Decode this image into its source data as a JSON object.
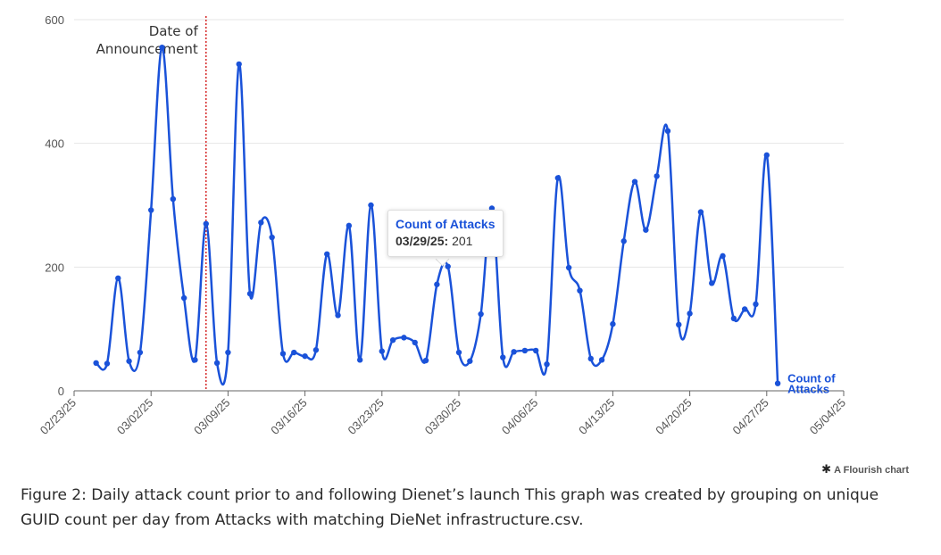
{
  "chart_data": {
    "type": "line",
    "x_ticks": [
      "02/23/25",
      "03/02/25",
      "03/09/25",
      "03/16/25",
      "03/23/25",
      "03/30/25",
      "04/06/25",
      "04/13/25",
      "04/20/25",
      "04/27/25",
      "05/04/25"
    ],
    "y_ticks": [
      0,
      200,
      400,
      600
    ],
    "ylim": [
      0,
      600
    ],
    "x_range": [
      "2025-02-23",
      "2025-05-04"
    ],
    "grid": true,
    "color": "#1a52d9",
    "series": [
      {
        "name": "Count of Attacks",
        "x": [
          "2025-02-25",
          "2025-02-26",
          "2025-02-27",
          "2025-02-28",
          "2025-03-01",
          "2025-03-02",
          "2025-03-03",
          "2025-03-04",
          "2025-03-05",
          "2025-03-06",
          "2025-03-07",
          "2025-03-08",
          "2025-03-09",
          "2025-03-10",
          "2025-03-11",
          "2025-03-12",
          "2025-03-13",
          "2025-03-14",
          "2025-03-15",
          "2025-03-16",
          "2025-03-17",
          "2025-03-18",
          "2025-03-19",
          "2025-03-20",
          "2025-03-21",
          "2025-03-22",
          "2025-03-23",
          "2025-03-24",
          "2025-03-25",
          "2025-03-26",
          "2025-03-27",
          "2025-03-28",
          "2025-03-29",
          "2025-03-30",
          "2025-03-31",
          "2025-04-01",
          "2025-04-02",
          "2025-04-03",
          "2025-04-04",
          "2025-04-05",
          "2025-04-06",
          "2025-04-07",
          "2025-04-08",
          "2025-04-09",
          "2025-04-10",
          "2025-04-11",
          "2025-04-12",
          "2025-04-13",
          "2025-04-14",
          "2025-04-15",
          "2025-04-16",
          "2025-04-17",
          "2025-04-18",
          "2025-04-19",
          "2025-04-20",
          "2025-04-21",
          "2025-04-22",
          "2025-04-23",
          "2025-04-24",
          "2025-04-25",
          "2025-04-26",
          "2025-04-27",
          "2025-04-28"
        ],
        "values": [
          45,
          44,
          182,
          48,
          62,
          292,
          555,
          310,
          150,
          50,
          270,
          45,
          62,
          528,
          157,
          272,
          248,
          60,
          62,
          56,
          66,
          221,
          122,
          267,
          50,
          300,
          64,
          82,
          86,
          78,
          49,
          172,
          201,
          62,
          48,
          124,
          295,
          54,
          63,
          65,
          65,
          43,
          344,
          199,
          162,
          52,
          50,
          108,
          242,
          338,
          260,
          347,
          420,
          107,
          125,
          289,
          174,
          218,
          117,
          132,
          140,
          381,
          12
        ]
      }
    ],
    "annotation": {
      "x": "2025-03-07",
      "label": "Date of Announcement",
      "line_1": "Date of",
      "line_2": "Announcement"
    },
    "end_label": {
      "line_1": "Count of",
      "line_2": "Attacks"
    },
    "tooltip": {
      "title": "Count of Attacks",
      "date": "03/29/25:",
      "value": "201"
    }
  },
  "credit": "A Flourish chart",
  "caption": "Figure 2: Daily attack count prior to and following Dienet’s launch This graph was created by grouping on unique GUID count per day from Attacks with matching DieNet infrastructure.csv."
}
